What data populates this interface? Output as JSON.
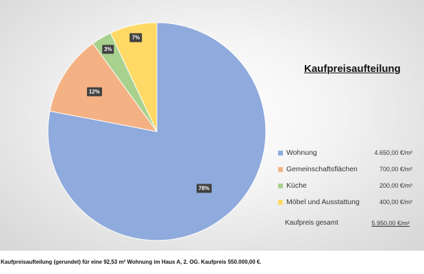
{
  "chart_data": {
    "type": "pie",
    "title": "Kaufpreisaufteilung",
    "categories": [
      "Wohnung",
      "Gemeinschaftsflächen",
      "Küche",
      "Möbel und Ausstattung"
    ],
    "values": [
      78,
      12,
      3,
      7
    ],
    "value_labels": [
      "78%",
      "12%",
      "3%",
      "7%"
    ],
    "colors": [
      "#8faadc",
      "#f4b183",
      "#a9d18e",
      "#ffd966"
    ],
    "legend_values": [
      "4.650,00 €/m²",
      "700,00 €/m²",
      "200,00 €/m²",
      "400,00 €/m²"
    ],
    "legend_position": "right",
    "total_label": "Kaufpreis gesamt",
    "total_value": "5.950,00 €/m²"
  },
  "caption": "Kaufpreisaufteilung (gerundet) für eine 92,53 m² Wohnung im Haus A, 2. OG. Kaufpreis 550.000,00 €."
}
